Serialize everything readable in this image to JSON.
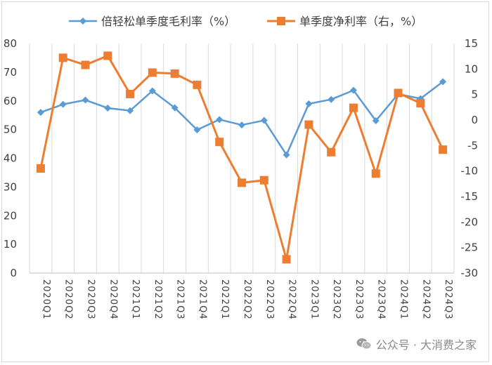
{
  "chart_data": {
    "type": "line",
    "categories": [
      "2020Q1",
      "2020Q2",
      "2020Q3",
      "2020Q4",
      "2021Q1",
      "2021Q2",
      "2021Q3",
      "2021Q4",
      "2022Q1",
      "2022Q2",
      "2022Q3",
      "2022Q4",
      "2023Q1",
      "2023Q2",
      "2023Q3",
      "2023Q4",
      "2024Q1",
      "2024Q2",
      "2024Q3"
    ],
    "series": [
      {
        "name": "倍轻松单季度毛利率（%）",
        "axis": "left",
        "color": "#5b9bd5",
        "marker": "diamond",
        "values": [
          56.0,
          58.8,
          60.3,
          57.5,
          56.6,
          63.5,
          57.6,
          49.9,
          53.5,
          51.6,
          53.2,
          41.2,
          59.0,
          60.5,
          63.7,
          53.1,
          62.4,
          60.8,
          66.7
        ]
      },
      {
        "name": "单季度净利率（右，%）",
        "axis": "right",
        "color": "#ed7d31",
        "marker": "square",
        "values": [
          -9.5,
          12.2,
          10.8,
          12.6,
          5.1,
          9.3,
          9.1,
          6.9,
          -4.3,
          -12.3,
          -11.8,
          -27.3,
          -0.9,
          -6.3,
          2.4,
          -10.5,
          5.3,
          3.3,
          -5.8
        ]
      }
    ],
    "yleft": {
      "min": 0,
      "max": 80,
      "step": 10,
      "ticks": [
        "0",
        "10",
        "20",
        "30",
        "40",
        "50",
        "60",
        "70",
        "80"
      ]
    },
    "yright": {
      "min": -30,
      "max": 15,
      "step": 5,
      "ticks": [
        "-30",
        "-25",
        "-20",
        "-15",
        "-10",
        "-5",
        "0",
        "5",
        "10",
        "15"
      ]
    },
    "grid": "vertical",
    "legend_position": "top"
  },
  "watermark": {
    "text": "公众号 · 大消费之家",
    "icon": "wechat-icon"
  }
}
